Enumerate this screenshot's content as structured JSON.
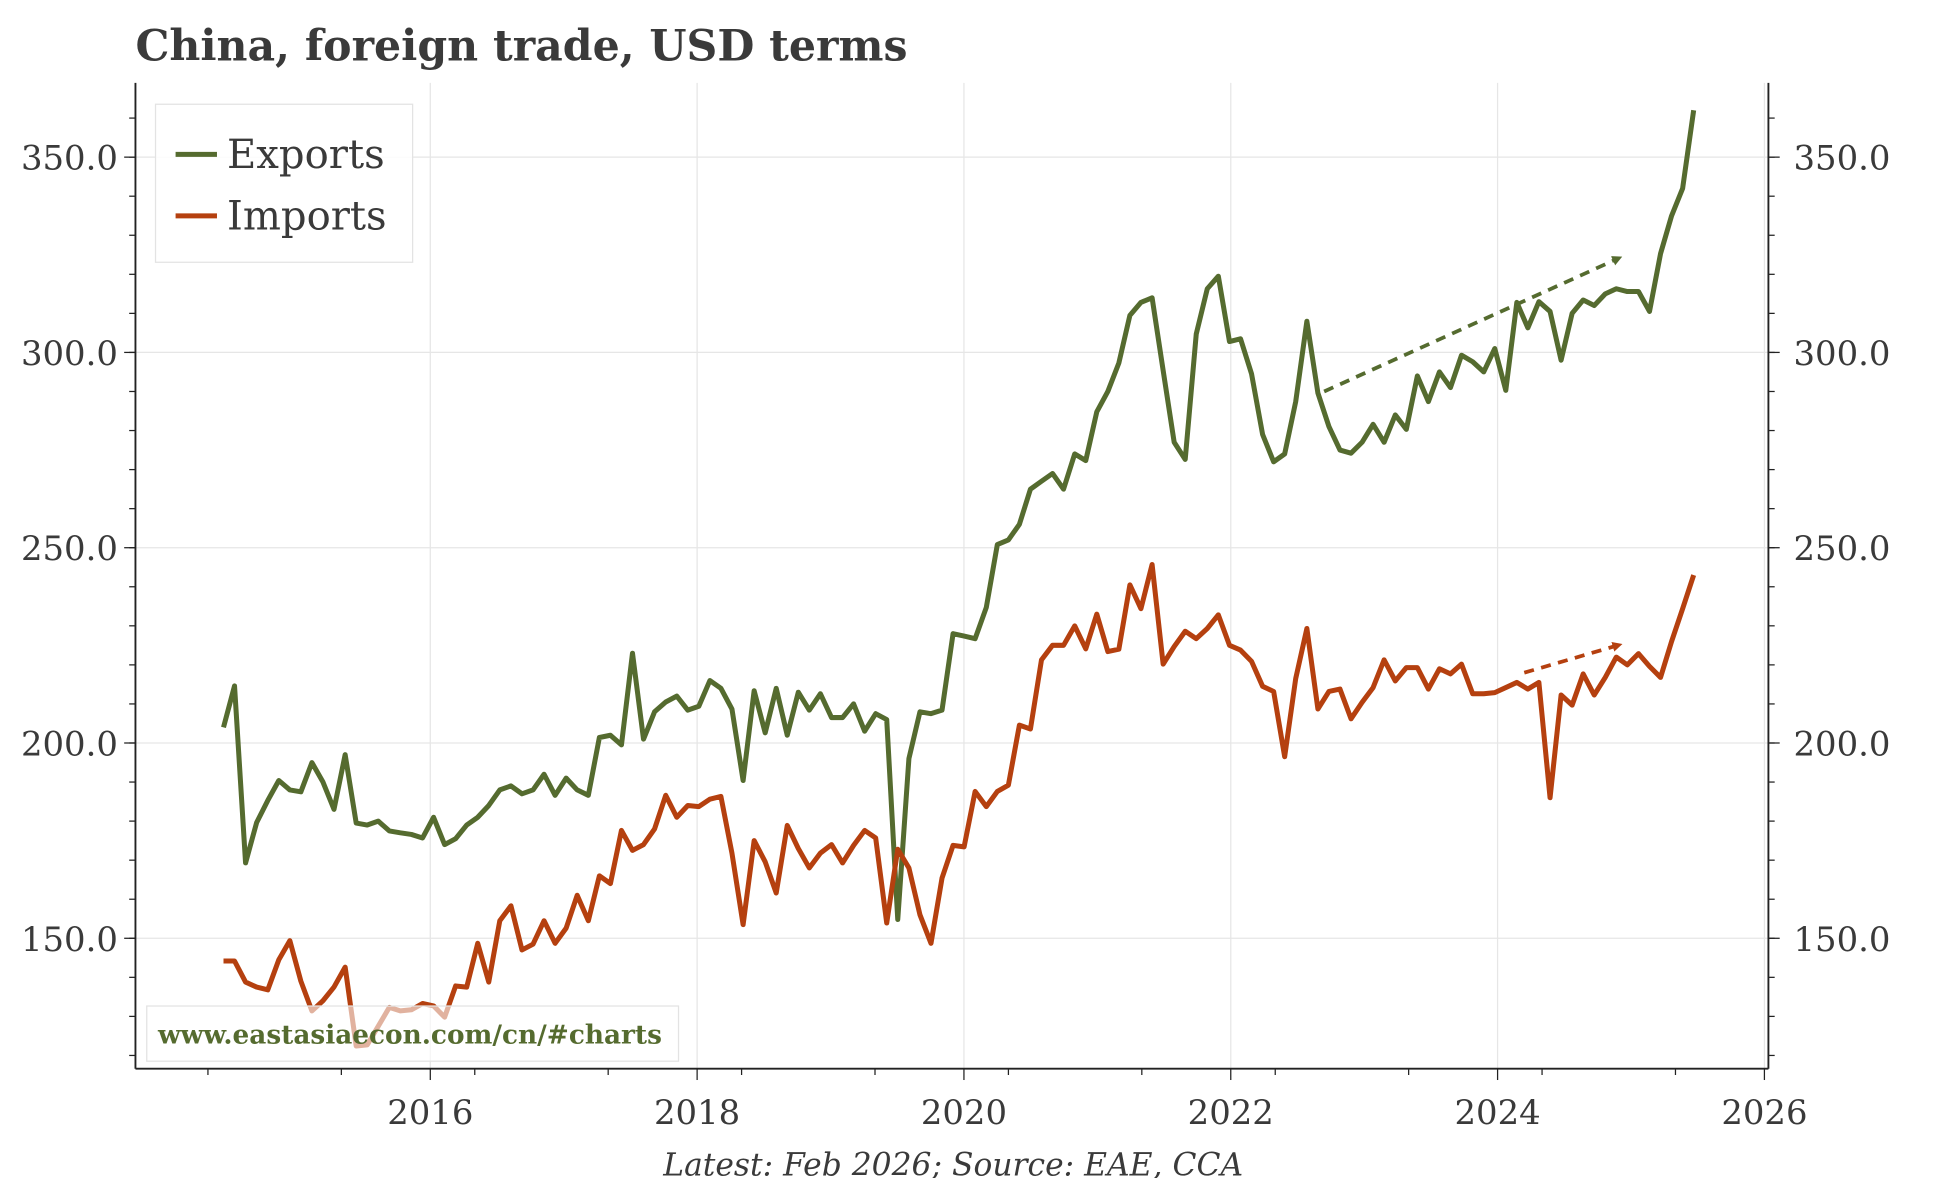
{
  "chart_data": {
    "type": "line",
    "title": "China, foreign trade, USD terms",
    "footer": "Latest: Feb 2026; Source: EAE, CCA",
    "watermark": "www.eastasiaecon.com/cn/#charts",
    "xlabel": "",
    "ylabel": "",
    "xlim": [
      2013.79,
      2026.03
    ],
    "ylim": [
      116.6,
      369
    ],
    "x_ticks": [
      2016,
      2018,
      2020,
      2022,
      2024,
      2026
    ],
    "x_tick_labels": [
      "2016",
      "2018",
      "2020",
      "2022",
      "2024",
      "2026"
    ],
    "y_ticks": [
      150,
      200,
      250,
      300,
      350
    ],
    "y_tick_labels": [
      "150.0",
      "200.0",
      "250.0",
      "300.0",
      "350.0"
    ],
    "grid": true,
    "legend_position": "top-left",
    "x_range_of_series": [
      2014.45,
      2025.47
    ],
    "series": [
      {
        "name": "Exports",
        "color": "#556b2f",
        "values": [
          204,
          214.6,
          169.3,
          179.6,
          185.3,
          190.4,
          188,
          187.5,
          195,
          190,
          183,
          197,
          179.5,
          179,
          180,
          177.5,
          177,
          176.6,
          175.7,
          181,
          174,
          175.5,
          179,
          181,
          184,
          188,
          189,
          187,
          188,
          192,
          186.6,
          191,
          188,
          186.6,
          201.4,
          202,
          199.5,
          223,
          201,
          208,
          210.5,
          212,
          208.4,
          209.4,
          216,
          214,
          208.7,
          190.4,
          213.4,
          202.6,
          214,
          202,
          213,
          208.4,
          212.6,
          206.5,
          206.5,
          210,
          203,
          207.5,
          206,
          154.8,
          196,
          208,
          207.5,
          208.4,
          228,
          227.4,
          226.7,
          234.7,
          250.8,
          252,
          256,
          265,
          267,
          269,
          265,
          274,
          272.3,
          284.8,
          290,
          297.3,
          309.5,
          312.8,
          314,
          295.4,
          277,
          272.6,
          304.7,
          316.3,
          319.5,
          302.8,
          303.5,
          294.5,
          279,
          272,
          274,
          287.4,
          308,
          289.6,
          281,
          275,
          274.2,
          277,
          281.6,
          277,
          284,
          280.3,
          294,
          287.4,
          295,
          291,
          299.3,
          297.6,
          295,
          301,
          290.3,
          312.8,
          306.3,
          313,
          310.5,
          298,
          310,
          313.4,
          312,
          315,
          316.3,
          315.6,
          315.6,
          310.5,
          325.3,
          335,
          342,
          362
        ]
      },
      {
        "name": "Imports",
        "color": "#b5400f",
        "values": [
          144.2,
          144.2,
          138.8,
          137.5,
          136.8,
          144.5,
          149.4,
          139,
          131.4,
          134,
          137.5,
          142.6,
          122.4,
          122.7,
          127.5,
          132.3,
          131.4,
          131.7,
          133.3,
          132.7,
          129.8,
          137.8,
          137.5,
          148.7,
          138.8,
          154.5,
          158.3,
          147,
          148.5,
          154.5,
          148.7,
          152.6,
          161,
          154.5,
          166,
          164,
          177.6,
          172.5,
          174,
          178,
          186.6,
          181,
          184,
          183.7,
          185.6,
          186.3,
          171.8,
          153.5,
          175,
          169.6,
          161.6,
          178.9,
          173,
          168,
          171.8,
          174,
          169.3,
          173.8,
          177.6,
          175.7,
          153.9,
          172.8,
          168,
          156,
          148.7,
          165.4,
          173.8,
          173.4,
          187.6,
          183.7,
          187.6,
          189.2,
          204.6,
          203.6,
          221.3,
          225,
          225,
          230,
          224.1,
          233,
          223.4,
          224,
          240.5,
          234.4,
          245.7,
          220.2,
          224.7,
          228.6,
          226.7,
          229.3,
          232.8,
          225,
          223.8,
          220.9,
          214.5,
          213.2,
          196.5,
          216.5,
          229.3,
          208.7,
          213.2,
          213.8,
          206.2,
          210.4,
          214.2,
          221.3,
          215.9,
          219.3,
          219.3,
          213.8,
          219,
          217.7,
          220.2,
          212.6,
          212.6,
          212.9,
          214.2,
          215.5,
          213.8,
          215.5,
          186,
          212.3,
          209.7,
          217.7,
          212.3,
          216.8,
          222,
          220,
          222.9,
          219.6,
          216.8,
          226,
          234.4,
          243
        ]
      }
    ],
    "annotations": [
      {
        "type": "dashed-arrow",
        "series": "Exports",
        "from": [
          2022.7,
          290
        ],
        "to": [
          2024.9,
          324
        ]
      },
      {
        "type": "dashed-arrow",
        "series": "Imports",
        "from": [
          2024.2,
          218
        ],
        "to": [
          2024.9,
          225
        ]
      }
    ]
  }
}
